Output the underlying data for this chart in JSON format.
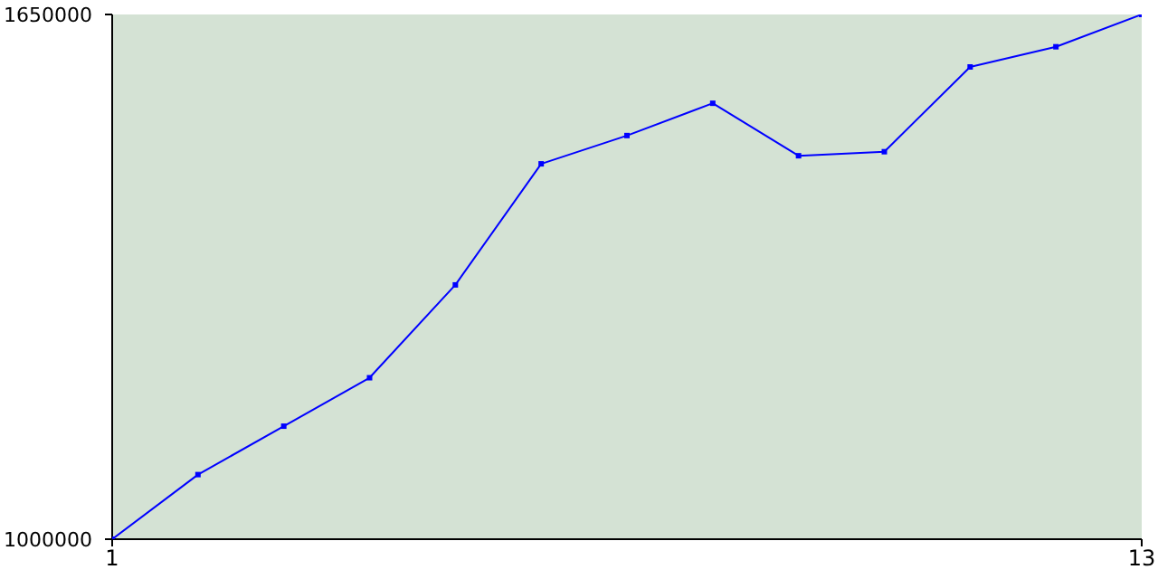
{
  "chart_data": {
    "type": "line",
    "x": [
      1,
      2,
      3,
      4,
      5,
      6,
      7,
      8,
      9,
      10,
      11,
      12,
      13
    ],
    "series": [
      {
        "color": "#0000ff",
        "values": [
          1000000,
          1080000,
          1140000,
          1200000,
          1315000,
          1465000,
          1500000,
          1540000,
          1475000,
          1480000,
          1585000,
          1610000,
          1650000
        ]
      }
    ],
    "xlim": [
      1,
      13
    ],
    "xticks": [
      1,
      13
    ],
    "ylim": [
      1000000,
      1650000
    ],
    "yticks": [
      1000000,
      1650000
    ],
    "grid": false,
    "legend": false,
    "marker": "square",
    "line_style": "solid"
  }
}
